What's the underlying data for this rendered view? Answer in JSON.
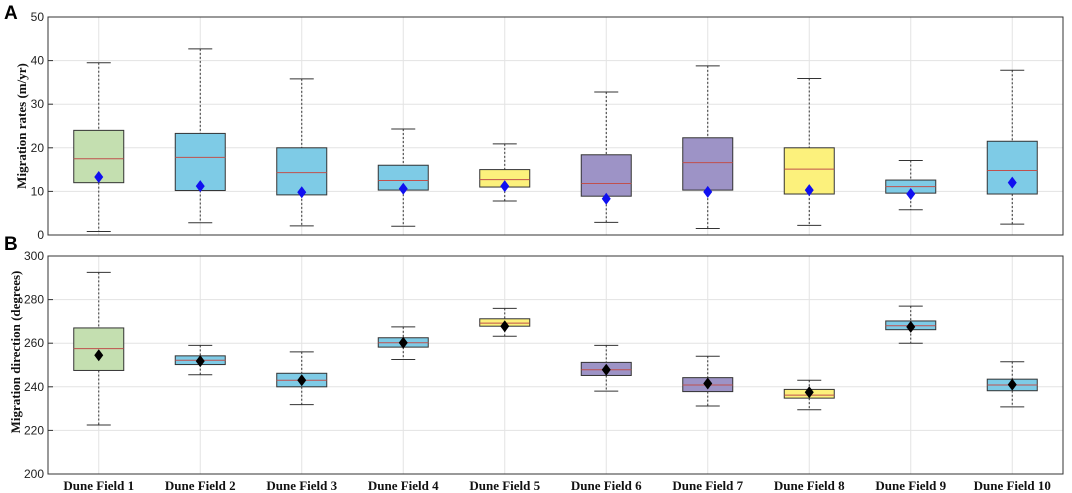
{
  "chart_data": [
    {
      "panel_label": "A",
      "type": "box",
      "ylabel": "Migration rates (m/yr)",
      "xlabel": "",
      "ylim": [
        0,
        50
      ],
      "yticks": [
        0,
        10,
        20,
        30,
        40,
        50
      ],
      "grid": true,
      "categories": [
        "Dune Field 1",
        "Dune Field 2",
        "Dune Field 3",
        "Dune Field 4",
        "Dune Field 5",
        "Dune Field 6",
        "Dune Field 7",
        "Dune Field 8",
        "Dune Field 9",
        "Dune Field 10"
      ],
      "show_category_labels": false,
      "mean_marker_color": "#1010f0",
      "median_color": "#c0504d",
      "boxes": [
        {
          "whisker_low": 0.8,
          "q1": 12.0,
          "median": 17.5,
          "q3": 24.0,
          "whisker_high": 39.5,
          "mean": 13.3,
          "fill": "#c4dfb0"
        },
        {
          "whisker_low": 2.8,
          "q1": 10.2,
          "median": 17.8,
          "q3": 23.3,
          "whisker_high": 42.7,
          "mean": 11.2,
          "fill": "#7ecbe6"
        },
        {
          "whisker_low": 2.1,
          "q1": 9.2,
          "median": 14.3,
          "q3": 20.0,
          "whisker_high": 35.8,
          "mean": 9.8,
          "fill": "#7ecbe6"
        },
        {
          "whisker_low": 2.0,
          "q1": 10.3,
          "median": 12.5,
          "q3": 16.0,
          "whisker_high": 24.3,
          "mean": 10.6,
          "fill": "#7ecbe6"
        },
        {
          "whisker_low": 7.8,
          "q1": 11.0,
          "median": 12.7,
          "q3": 15.0,
          "whisker_high": 20.9,
          "mean": 11.2,
          "fill": "#fcf17c"
        },
        {
          "whisker_low": 2.9,
          "q1": 8.9,
          "median": 11.8,
          "q3": 18.4,
          "whisker_high": 32.8,
          "mean": 8.3,
          "fill": "#9d93c6"
        },
        {
          "whisker_low": 1.5,
          "q1": 10.3,
          "median": 16.6,
          "q3": 22.3,
          "whisker_high": 38.8,
          "mean": 9.9,
          "fill": "#9d93c6"
        },
        {
          "whisker_low": 2.2,
          "q1": 9.4,
          "median": 15.1,
          "q3": 20.0,
          "whisker_high": 35.9,
          "mean": 10.3,
          "fill": "#fcf17c"
        },
        {
          "whisker_low": 5.8,
          "q1": 9.6,
          "median": 11.1,
          "q3": 12.6,
          "whisker_high": 17.1,
          "mean": 9.4,
          "fill": "#7ecbe6"
        },
        {
          "whisker_low": 2.5,
          "q1": 9.4,
          "median": 14.8,
          "q3": 21.5,
          "whisker_high": 37.8,
          "mean": 12.0,
          "fill": "#7ecbe6"
        }
      ]
    },
    {
      "panel_label": "B",
      "type": "box",
      "ylabel": "Migration direction (degrees)",
      "xlabel": "",
      "ylim": [
        200,
        300
      ],
      "yticks": [
        200,
        220,
        240,
        260,
        280,
        300
      ],
      "grid": true,
      "categories": [
        "Dune Field 1",
        "Dune Field 2",
        "Dune Field 3",
        "Dune Field 4",
        "Dune Field 5",
        "Dune Field 6",
        "Dune Field 7",
        "Dune Field 8",
        "Dune Field 9",
        "Dune Field 10"
      ],
      "show_category_labels": true,
      "mean_marker_color": "#000000",
      "median_color": "#c0504d",
      "boxes": [
        {
          "whisker_low": 222.5,
          "q1": 247.5,
          "median": 257.5,
          "q3": 267.0,
          "whisker_high": 292.5,
          "mean": 254.5,
          "fill": "#c4dfb0"
        },
        {
          "whisker_low": 245.5,
          "q1": 250.2,
          "median": 252.2,
          "q3": 254.2,
          "whisker_high": 259.0,
          "mean": 251.8,
          "fill": "#7ecbe6"
        },
        {
          "whisker_low": 231.8,
          "q1": 240.0,
          "median": 243.0,
          "q3": 246.2,
          "whisker_high": 256.0,
          "mean": 243.0,
          "fill": "#7ecbe6"
        },
        {
          "whisker_low": 252.5,
          "q1": 258.2,
          "median": 260.2,
          "q3": 262.5,
          "whisker_high": 267.5,
          "mean": 260.2,
          "fill": "#7ecbe6"
        },
        {
          "whisker_low": 263.2,
          "q1": 267.8,
          "median": 269.2,
          "q3": 271.2,
          "whisker_high": 276.0,
          "mean": 267.8,
          "fill": "#fcf17c"
        },
        {
          "whisker_low": 238.0,
          "q1": 245.2,
          "median": 247.8,
          "q3": 251.2,
          "whisker_high": 259.0,
          "mean": 247.8,
          "fill": "#9d93c6"
        },
        {
          "whisker_low": 231.2,
          "q1": 237.8,
          "median": 240.8,
          "q3": 244.2,
          "whisker_high": 254.0,
          "mean": 241.5,
          "fill": "#9d93c6"
        },
        {
          "whisker_low": 229.5,
          "q1": 234.8,
          "median": 236.2,
          "q3": 238.8,
          "whisker_high": 243.0,
          "mean": 237.5,
          "fill": "#fcf17c"
        },
        {
          "whisker_low": 260.0,
          "q1": 266.2,
          "median": 268.0,
          "q3": 270.2,
          "whisker_high": 277.0,
          "mean": 267.5,
          "fill": "#7ecbe6"
        },
        {
          "whisker_low": 230.8,
          "q1": 238.2,
          "median": 240.8,
          "q3": 243.5,
          "whisker_high": 251.5,
          "mean": 241.0,
          "fill": "#7ecbe6"
        }
      ]
    }
  ]
}
